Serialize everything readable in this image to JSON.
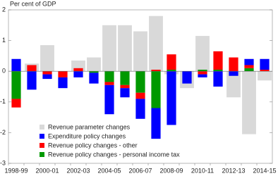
{
  "chart_data": {
    "type": "bar",
    "stacked": true,
    "y_label": "Per cent of GDP",
    "categories": [
      "1998-99",
      null,
      "2000-01",
      null,
      "2002-03",
      null,
      "2004-05",
      null,
      "2006-07",
      null,
      "2008-09",
      null,
      "2010-11",
      null,
      "2012-13",
      null,
      "2014-15"
    ],
    "series": [
      {
        "name": "Revenue parameter changes",
        "color": "#d9d9d9",
        "background": true,
        "values": [
          0,
          0.25,
          0.85,
          0,
          0.35,
          0.45,
          1.5,
          1.5,
          1.3,
          1.8,
          -0.1,
          -0.55,
          1.15,
          0,
          -0.85,
          -2.05,
          -0.3
        ]
      },
      {
        "name": "Revenue policy changes - personal income tax",
        "color": "#009900",
        "values": [
          -0.9,
          0,
          0,
          0,
          0,
          -0.05,
          -0.35,
          -0.45,
          -0.7,
          -1.2,
          0.05,
          0,
          0.05,
          0.05,
          0,
          0.1,
          0
        ]
      },
      {
        "name": "Revenue policy changes - other",
        "color": "#ff0000",
        "values": [
          -0.28,
          0.2,
          -0.1,
          -0.2,
          0.1,
          0,
          -0.1,
          -0.1,
          -0.2,
          0.05,
          0.5,
          0,
          -0.1,
          0.6,
          0.45,
          0.1,
          0.05
        ]
      },
      {
        "name": "Expenditure policy changes",
        "color": "#0000ff",
        "values": [
          0.4,
          -0.6,
          -0.15,
          -0.35,
          -0.2,
          -0.35,
          -0.95,
          -0.3,
          -0.65,
          -1.0,
          -1.75,
          -0.4,
          -0.1,
          -0.5,
          -0.15,
          0.2,
          0.35
        ]
      }
    ],
    "legend_order": [
      0,
      3,
      2,
      1
    ],
    "legend": "lower left",
    "ylim": [
      -3,
      2
    ],
    "yticks": [
      -3,
      -2,
      -1,
      0,
      1,
      2
    ]
  }
}
